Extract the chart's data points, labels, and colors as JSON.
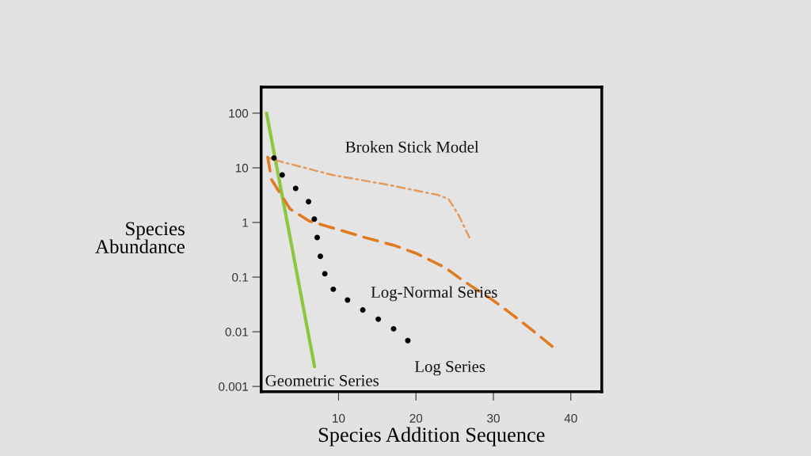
{
  "chart_data": {
    "type": "line",
    "xlabel": "Species Addition Sequence",
    "ylabel": "Species\nAbundance",
    "log": "y",
    "xlim": [
      0,
      44
    ],
    "xticks": [
      10,
      20,
      30,
      40
    ],
    "ylim": [
      0.0008,
      300
    ],
    "yticks": [
      {
        "value": 100,
        "label": "100"
      },
      {
        "value": 10,
        "label": "10"
      },
      {
        "value": 1,
        "label": "1"
      },
      {
        "value": 0.1,
        "label": "0.1"
      },
      {
        "value": 0.01,
        "label": "0.01"
      },
      {
        "value": 0.001,
        "label": "0.001"
      }
    ],
    "grid": false,
    "legend": false,
    "series": [
      {
        "name": "Geometric Series",
        "line_style": "solid",
        "color": "#8dc63f",
        "x": [
          0.7,
          6.9
        ],
        "values": [
          100,
          0.0023
        ]
      },
      {
        "name": "Broken Stick Model",
        "line_style": "dashdot",
        "color": "#e39a5c",
        "x": [
          0.85,
          2.38,
          9.18,
          16.0,
          22.8,
          24.2,
          25.5,
          26.9
        ],
        "values": [
          15.6,
          13.2,
          7.4,
          5.0,
          3.2,
          2.7,
          1.37,
          0.53
        ]
      },
      {
        "name": "Log-Normal Series",
        "line_style": "dashed",
        "color": "#e07b20",
        "x": [
          0.85,
          1.36,
          3.74,
          6.22,
          10.3,
          13.2,
          17.2,
          20.1,
          23.8,
          26.2,
          29.8,
          32.0,
          35.2,
          37.6
        ],
        "values": [
          15.6,
          6.0,
          1.76,
          1.06,
          0.72,
          0.54,
          0.38,
          0.27,
          0.148,
          0.084,
          0.039,
          0.023,
          0.0102,
          0.0054
        ]
      },
      {
        "name": "Log Series",
        "type": "scatter",
        "marker": "circle",
        "color": "#000000",
        "x": [
          1.66,
          2.72,
          4.46,
          6.12,
          6.87,
          7.24,
          7.65,
          8.23,
          9.32,
          11.16,
          13.13,
          15.13,
          17.11,
          18.95
        ],
        "values": [
          15.1,
          7.4,
          4.2,
          2.4,
          1.15,
          0.53,
          0.24,
          0.115,
          0.06,
          0.038,
          0.025,
          0.017,
          0.0113,
          0.0069
        ]
      }
    ]
  }
}
